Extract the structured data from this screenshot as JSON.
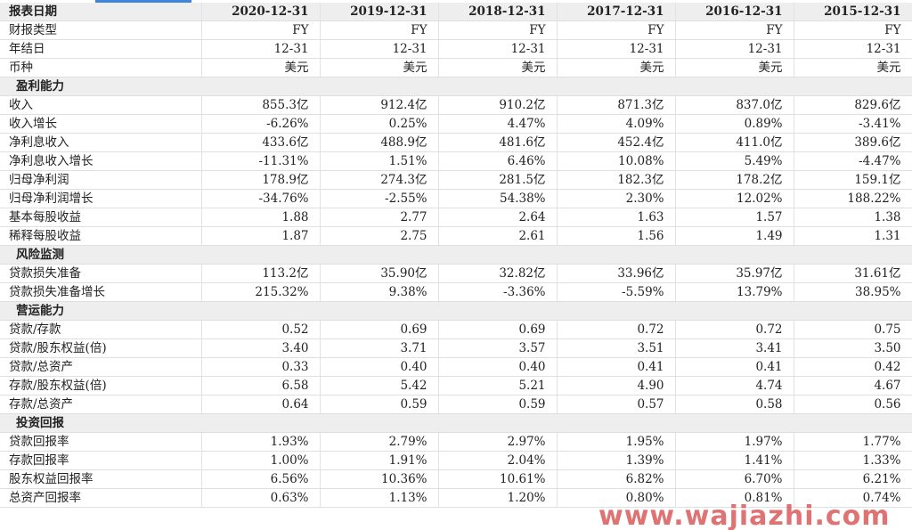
{
  "columns": [
    "报表日期",
    "2020-12-31",
    "2019-12-31",
    "2018-12-31",
    "2017-12-31",
    "2016-12-31",
    "2015-12-31"
  ],
  "rows": [
    {
      "type": "data",
      "label": "财报类型",
      "values": [
        "FY",
        "FY",
        "FY",
        "FY",
        "FY",
        "FY"
      ]
    },
    {
      "type": "data",
      "label": "年结日",
      "values": [
        "12-31",
        "12-31",
        "12-31",
        "12-31",
        "12-31",
        "12-31"
      ]
    },
    {
      "type": "data",
      "label": "币种",
      "values": [
        "美元",
        "美元",
        "美元",
        "美元",
        "美元",
        "美元"
      ]
    },
    {
      "type": "section",
      "label": "盈利能力"
    },
    {
      "type": "data",
      "label": "收入",
      "values": [
        "855.3亿",
        "912.4亿",
        "910.2亿",
        "871.3亿",
        "837.0亿",
        "829.6亿"
      ]
    },
    {
      "type": "data",
      "label": "收入增长",
      "values": [
        "-6.26%",
        "0.25%",
        "4.47%",
        "4.09%",
        "0.89%",
        "-3.41%"
      ]
    },
    {
      "type": "data",
      "label": "净利息收入",
      "values": [
        "433.6亿",
        "488.9亿",
        "481.6亿",
        "452.4亿",
        "411.0亿",
        "389.6亿"
      ]
    },
    {
      "type": "data",
      "label": "净利息收入增长",
      "values": [
        "-11.31%",
        "1.51%",
        "6.46%",
        "10.08%",
        "5.49%",
        "-4.47%"
      ]
    },
    {
      "type": "data",
      "label": "归母净利润",
      "values": [
        "178.9亿",
        "274.3亿",
        "281.5亿",
        "182.3亿",
        "178.2亿",
        "159.1亿"
      ]
    },
    {
      "type": "data",
      "label": "归母净利润增长",
      "values": [
        "-34.76%",
        "-2.55%",
        "54.38%",
        "2.30%",
        "12.02%",
        "188.22%"
      ]
    },
    {
      "type": "data",
      "label": "基本每股收益",
      "values": [
        "1.88",
        "2.77",
        "2.64",
        "1.63",
        "1.57",
        "1.38"
      ]
    },
    {
      "type": "data",
      "label": "稀释每股收益",
      "values": [
        "1.87",
        "2.75",
        "2.61",
        "1.56",
        "1.49",
        "1.31"
      ]
    },
    {
      "type": "section",
      "label": "风险监测"
    },
    {
      "type": "data",
      "label": "贷款损失准备",
      "values": [
        "113.2亿",
        "35.90亿",
        "32.82亿",
        "33.96亿",
        "35.97亿",
        "31.61亿"
      ]
    },
    {
      "type": "data",
      "label": "贷款损失准备增长",
      "values": [
        "215.32%",
        "9.38%",
        "-3.36%",
        "-5.59%",
        "13.79%",
        "38.95%"
      ]
    },
    {
      "type": "section",
      "label": "营运能力"
    },
    {
      "type": "data",
      "label": "贷款/存款",
      "values": [
        "0.52",
        "0.69",
        "0.69",
        "0.72",
        "0.72",
        "0.75"
      ]
    },
    {
      "type": "data",
      "label": "贷款/股东权益(倍)",
      "values": [
        "3.40",
        "3.71",
        "3.57",
        "3.51",
        "3.41",
        "3.50"
      ]
    },
    {
      "type": "data",
      "label": "贷款/总资产",
      "values": [
        "0.33",
        "0.40",
        "0.40",
        "0.41",
        "0.41",
        "0.42"
      ]
    },
    {
      "type": "data",
      "label": "存款/股东权益(倍)",
      "values": [
        "6.58",
        "5.42",
        "5.21",
        "4.90",
        "4.74",
        "4.67"
      ]
    },
    {
      "type": "data",
      "label": "存款/总资产",
      "values": [
        "0.64",
        "0.59",
        "0.59",
        "0.57",
        "0.58",
        "0.56"
      ]
    },
    {
      "type": "section",
      "label": "投资回报"
    },
    {
      "type": "data",
      "label": "贷款回报率",
      "values": [
        "1.93%",
        "2.79%",
        "2.97%",
        "1.95%",
        "1.97%",
        "1.77%"
      ]
    },
    {
      "type": "data",
      "label": "存款回报率",
      "values": [
        "1.00%",
        "1.91%",
        "2.04%",
        "1.39%",
        "1.41%",
        "1.33%"
      ]
    },
    {
      "type": "data",
      "label": "股东权益回报率",
      "values": [
        "6.56%",
        "10.36%",
        "10.61%",
        "6.82%",
        "6.70%",
        "6.21%"
      ]
    },
    {
      "type": "data",
      "label": "总资产回报率",
      "values": [
        "0.63%",
        "1.13%",
        "1.20%",
        "0.80%",
        "0.81%",
        "0.74%"
      ]
    }
  ],
  "watermark": "www.wajiazhi.com",
  "colors": {
    "header_bg": "#eeeeee",
    "accent_tab": "#3d86d9",
    "watermark": "#d64c4c"
  }
}
